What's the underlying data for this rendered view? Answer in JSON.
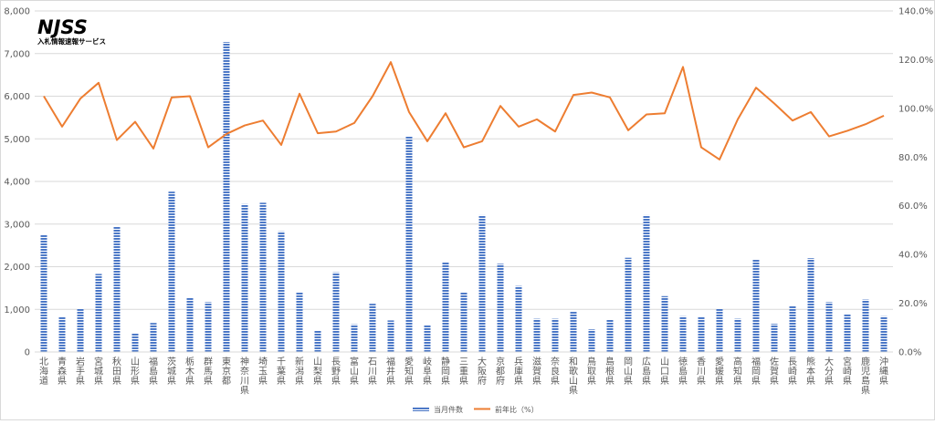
{
  "logo": {
    "mark": "NJSS",
    "tagline": "入札情報速報サービス",
    "color": "#1a2a8c"
  },
  "colors": {
    "bar": "#4472c4",
    "line": "#ed7d31",
    "grid": "#d9d9d9",
    "axis_text": "#595959"
  },
  "chart_data": {
    "type": "bar",
    "categories": [
      "北海道",
      "青森県",
      "岩手県",
      "宮城県",
      "秋田県",
      "山形県",
      "福島県",
      "茨城県",
      "栃木県",
      "群馬県",
      "東京都",
      "神奈川県",
      "埼玉県",
      "千葉県",
      "新潟県",
      "山梨県",
      "長野県",
      "富山県",
      "石川県",
      "福井県",
      "愛知県",
      "岐阜県",
      "静岡県",
      "三重県",
      "大阪府",
      "京都府",
      "兵庫県",
      "滋賀県",
      "奈良県",
      "和歌山県",
      "鳥取県",
      "島根県",
      "岡山県",
      "広島県",
      "山口県",
      "徳島県",
      "香川県",
      "愛媛県",
      "高知県",
      "福岡県",
      "佐賀県",
      "長崎県",
      "熊本県",
      "大分県",
      "宮崎県",
      "鹿児島県",
      "沖縄県"
    ],
    "series": [
      {
        "name": "当月件数",
        "type": "bar",
        "axis": "left",
        "values": [
          2750,
          820,
          1020,
          1830,
          2930,
          430,
          680,
          3760,
          1270,
          1170,
          7270,
          3470,
          3500,
          2830,
          1410,
          500,
          1870,
          650,
          1130,
          740,
          5070,
          630,
          2110,
          1390,
          3210,
          2070,
          1550,
          780,
          780,
          940,
          530,
          770,
          2210,
          3210,
          1310,
          840,
          820,
          1010,
          780,
          2160,
          660,
          1090,
          2200,
          1170,
          900,
          1230,
          840
        ]
      },
      {
        "name": "前年比（%）",
        "type": "line",
        "axis": "right",
        "values": [
          105.0,
          92.5,
          104.0,
          110.5,
          87.0,
          94.5,
          83.5,
          104.5,
          105.0,
          84.0,
          89.5,
          93.0,
          95.0,
          85.0,
          106.0,
          89.8,
          90.5,
          94.0,
          105.0,
          119.0,
          98.5,
          86.5,
          98.0,
          84.0,
          86.5,
          101.0,
          92.5,
          95.5,
          90.5,
          105.5,
          106.5,
          104.5,
          91.0,
          97.5,
          98.0,
          117.0,
          84.0,
          79.0,
          95.5,
          108.5,
          102.0,
          95.0,
          98.5,
          88.5,
          90.8,
          93.5,
          97.0
        ]
      }
    ],
    "y_left": {
      "min": 0,
      "max": 8000,
      "ticks": [
        "0",
        "1,000",
        "2,000",
        "3,000",
        "4,000",
        "5,000",
        "6,000",
        "7,000",
        "8,000"
      ]
    },
    "y_right": {
      "min": 0,
      "max": 140,
      "ticks": [
        "0.0%",
        "20.0%",
        "40.0%",
        "60.0%",
        "80.0%",
        "100.0%",
        "120.0%",
        "140.0%"
      ]
    },
    "grid": true,
    "legend_position": "bottom"
  }
}
